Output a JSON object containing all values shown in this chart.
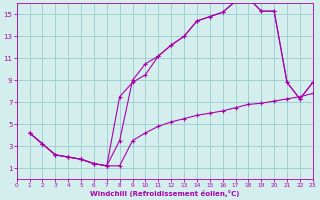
{
  "xlabel": "Windchill (Refroidissement éolien,°C)",
  "bg_color": "#d4eeee",
  "line_color": "#aa00aa",
  "grid_color": "#99cccc",
  "xlim": [
    0,
    23
  ],
  "ylim": [
    0,
    16
  ],
  "xticks": [
    0,
    1,
    2,
    3,
    4,
    5,
    6,
    7,
    8,
    9,
    10,
    11,
    12,
    13,
    14,
    15,
    16,
    17,
    18,
    19,
    20,
    21,
    22,
    23
  ],
  "yticks": [
    1,
    3,
    5,
    7,
    9,
    11,
    13,
    15
  ],
  "line1_x": [
    1,
    2,
    3,
    4,
    5,
    6,
    7,
    8,
    9,
    10,
    11,
    12,
    13,
    14,
    15,
    16,
    17,
    18,
    19,
    20,
    21,
    22,
    23
  ],
  "line1_y": [
    4.2,
    3.2,
    2.2,
    2.0,
    1.8,
    1.4,
    1.2,
    7.5,
    8.8,
    9.5,
    11.2,
    12.2,
    13.0,
    14.4,
    14.8,
    15.2,
    16.2,
    16.5,
    15.3,
    15.3,
    8.8,
    7.3,
    8.8
  ],
  "line2_x": [
    1,
    2,
    3,
    4,
    5,
    6,
    7,
    8,
    9,
    10,
    11,
    12,
    13,
    14,
    15,
    16,
    17,
    18,
    19,
    20,
    21,
    22,
    23
  ],
  "line2_y": [
    4.2,
    3.2,
    2.2,
    2.0,
    1.8,
    1.4,
    1.2,
    3.5,
    9.0,
    10.5,
    11.2,
    12.2,
    13.0,
    14.4,
    14.8,
    15.2,
    16.2,
    16.5,
    15.3,
    15.3,
    8.8,
    7.3,
    8.8
  ],
  "line3_x": [
    1,
    2,
    3,
    4,
    5,
    6,
    7,
    8,
    9,
    10,
    11,
    12,
    13,
    14,
    15,
    16,
    17,
    18,
    19,
    20,
    21,
    22,
    23
  ],
  "line3_y": [
    4.2,
    3.2,
    2.2,
    2.0,
    1.8,
    1.4,
    1.2,
    1.2,
    3.5,
    4.2,
    4.8,
    5.2,
    5.5,
    5.8,
    6.0,
    6.2,
    6.5,
    6.8,
    6.9,
    7.1,
    7.3,
    7.5,
    7.8
  ]
}
